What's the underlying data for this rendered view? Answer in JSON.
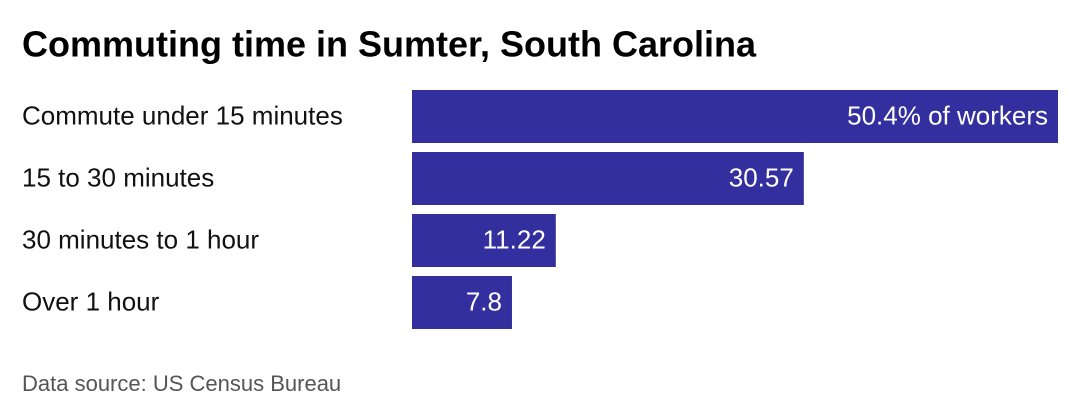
{
  "chart_data": {
    "type": "hbar",
    "title": "Commuting time in Sumter, South Carolina",
    "categories": [
      "Commute under 15 minutes",
      "15 to 30 minutes",
      "30 minutes to 1 hour",
      "Over 1 hour"
    ],
    "values": [
      50.4,
      30.57,
      11.22,
      7.8
    ],
    "value_labels": [
      "50.4% of workers",
      "30.57",
      "11.22",
      "7.8"
    ],
    "color": "#332f9f",
    "source": "Data source: US Census Bureau"
  }
}
